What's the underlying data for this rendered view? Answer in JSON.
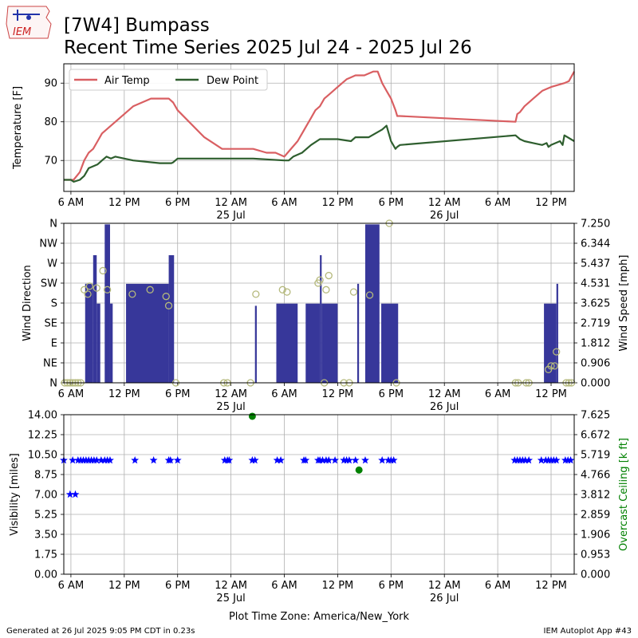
{
  "header": {
    "logo_text": "IEM",
    "title_line1": "[7W4] Bumpass",
    "title_line2": "Recent Time Series 2025 Jul 24 - 2025 Jul 26"
  },
  "footer": {
    "generated": "Generated at 26 Jul 2025 9:05 PM CDT in 0.23s",
    "app": "IEM Autoplot App #43",
    "timezone": "Plot Time Zone: America/New_York"
  },
  "colors": {
    "air_temp": "#d95f62",
    "dew_point": "#2e5e2e",
    "wind_bar": "#37379a",
    "wind_dir": "#b5b97c",
    "visibility": "#0000ff",
    "ceiling": "#008000"
  },
  "chart_data": [
    {
      "type": "line",
      "title": "",
      "ylabel": "Temperature [F]",
      "ylim": [
        62,
        95
      ],
      "yticks": [
        70,
        80,
        90
      ],
      "xlim_hours": [
        5.2,
        62.6
      ],
      "xticks": [
        {
          "h": 6,
          "label": "6 AM",
          "date": ""
        },
        {
          "h": 12,
          "label": "12 PM",
          "date": ""
        },
        {
          "h": 18,
          "label": "6 PM",
          "date": ""
        },
        {
          "h": 24,
          "label": "12 AM",
          "date": "25 Jul"
        },
        {
          "h": 30,
          "label": "6 AM",
          "date": ""
        },
        {
          "h": 36,
          "label": "12 PM",
          "date": ""
        },
        {
          "h": 42,
          "label": "6 PM",
          "date": ""
        },
        {
          "h": 48,
          "label": "12 AM",
          "date": "26 Jul"
        },
        {
          "h": 54,
          "label": "6 AM",
          "date": ""
        },
        {
          "h": 60,
          "label": "12 PM",
          "date": ""
        }
      ],
      "grid": true,
      "legend": "top-left",
      "series": [
        {
          "name": "Air Temp",
          "x": [
            5.2,
            6.0,
            6.3,
            7.0,
            7.5,
            8.0,
            8.5,
            9.0,
            9.5,
            10.0,
            11.0,
            13.0,
            15.0,
            17.0,
            17.5,
            18.0,
            21.0,
            23.0,
            25.0,
            26.5,
            28.0,
            29.0,
            30.0,
            31.5,
            32.5,
            33.0,
            33.5,
            34.0,
            34.5,
            35.0,
            36.0,
            37.0,
            37.5,
            38.0,
            39.0,
            39.5,
            40.0,
            40.5,
            41.0,
            41.5,
            42.0,
            42.5,
            42.7,
            43.0,
            56.0,
            56.2,
            56.5,
            57.0,
            58.0,
            59.0,
            59.5,
            60.0,
            61.5,
            62.0,
            62.6
          ],
          "values": [
            65,
            65,
            65,
            67,
            70,
            72,
            73,
            75,
            77,
            78,
            80,
            84,
            86,
            86,
            85,
            83,
            76,
            73,
            73,
            73,
            72,
            72,
            71,
            75,
            79,
            81,
            83,
            84,
            86,
            87,
            89,
            91,
            91.5,
            92,
            92,
            92.5,
            93,
            93,
            90,
            88,
            86,
            83,
            81.5,
            81.5,
            80,
            82,
            82.5,
            84,
            86,
            88,
            88.5,
            89,
            90,
            90.5,
            93
          ]
        },
        {
          "name": "Dew Point",
          "x": [
            5.2,
            6.0,
            6.3,
            7.0,
            7.5,
            8.0,
            9.0,
            9.5,
            10.0,
            10.5,
            11.0,
            13.0,
            16.0,
            17.0,
            17.3,
            17.5,
            18.0,
            24.0,
            26.5,
            30.0,
            30.5,
            31.0,
            32.0,
            33.0,
            34.0,
            35.0,
            36.0,
            37.5,
            38.0,
            39.5,
            41.0,
            41.5,
            42.0,
            42.5,
            42.7,
            43.0,
            56.0,
            56.5,
            57.0,
            58.0,
            59.0,
            59.5,
            59.7,
            60.0,
            61.0,
            61.3,
            61.5,
            62.6
          ],
          "values": [
            65,
            65,
            64.5,
            65,
            66,
            68,
            69,
            70,
            71,
            70.5,
            71,
            70,
            69.3,
            69.3,
            69.3,
            69.5,
            70.5,
            70.5,
            70.5,
            70,
            70,
            71,
            72,
            74,
            75.5,
            75.5,
            75.5,
            75,
            76,
            76,
            78,
            79,
            75,
            73,
            73.5,
            74,
            76.5,
            75.5,
            75,
            74.5,
            74,
            74.5,
            73.5,
            74,
            75,
            74,
            76.5,
            75
          ]
        }
      ]
    },
    {
      "type": "bar",
      "title": "",
      "ylabel": "Wind Direction",
      "ylabel_right": "Wind Speed [mph]",
      "dir_ticks": [
        "N",
        "NE",
        "E",
        "SE",
        "S",
        "SW",
        "W",
        "NW",
        "N"
      ],
      "speed_ticks": [
        "0.000",
        "0.906",
        "1.812",
        "2.719",
        "3.625",
        "4.531",
        "5.437",
        "6.344",
        "7.250"
      ],
      "speed_lim": [
        0,
        7.25
      ],
      "grid": true,
      "series": [
        {
          "name": "Wind Speed",
          "bars": [
            {
              "x0": 7.6,
              "x1": 8.5,
              "value": 4.5
            },
            {
              "x0": 8.5,
              "x1": 8.9,
              "value": 5.8
            },
            {
              "x0": 8.9,
              "x1": 9.3,
              "value": 3.6
            },
            {
              "x0": 9.8,
              "x1": 10.4,
              "value": 7.2
            },
            {
              "x0": 10.4,
              "x1": 10.7,
              "value": 3.6
            },
            {
              "x0": 12.2,
              "x1": 17.0,
              "value": 4.5
            },
            {
              "x0": 17.0,
              "x1": 17.6,
              "value": 5.8
            },
            {
              "x0": 26.7,
              "x1": 26.9,
              "value": 3.5
            },
            {
              "x0": 29.1,
              "x1": 31.5,
              "value": 3.6
            },
            {
              "x0": 32.4,
              "x1": 34.0,
              "value": 3.6
            },
            {
              "x0": 34.0,
              "x1": 34.2,
              "value": 5.8
            },
            {
              "x0": 34.2,
              "x1": 36.0,
              "value": 3.6
            },
            {
              "x0": 38.2,
              "x1": 38.4,
              "value": 4.5
            },
            {
              "x0": 39.1,
              "x1": 40.7,
              "value": 7.2
            },
            {
              "x0": 40.9,
              "x1": 42.8,
              "value": 3.6
            },
            {
              "x0": 59.2,
              "x1": 60.6,
              "value": 3.6
            },
            {
              "x0": 60.6,
              "x1": 60.8,
              "value": 4.5
            }
          ]
        },
        {
          "name": "Wind Direction",
          "points": [
            {
              "x": 5.3,
              "deg": 0
            },
            {
              "x": 5.6,
              "deg": 0
            },
            {
              "x": 5.9,
              "deg": 0
            },
            {
              "x": 6.2,
              "deg": 0
            },
            {
              "x": 6.5,
              "deg": 0
            },
            {
              "x": 6.8,
              "deg": 0
            },
            {
              "x": 7.1,
              "deg": 0
            },
            {
              "x": 7.5,
              "deg": 210
            },
            {
              "x": 7.9,
              "deg": 200
            },
            {
              "x": 8.1,
              "deg": 218
            },
            {
              "x": 8.9,
              "deg": 214
            },
            {
              "x": 9.6,
              "deg": 253
            },
            {
              "x": 10.1,
              "deg": 210
            },
            {
              "x": 12.9,
              "deg": 200
            },
            {
              "x": 14.9,
              "deg": 210
            },
            {
              "x": 16.7,
              "deg": 195
            },
            {
              "x": 17.0,
              "deg": 174
            },
            {
              "x": 17.8,
              "deg": 0
            },
            {
              "x": 23.2,
              "deg": 0
            },
            {
              "x": 23.6,
              "deg": 0
            },
            {
              "x": 26.2,
              "deg": 0
            },
            {
              "x": 26.8,
              "deg": 200
            },
            {
              "x": 29.8,
              "deg": 210
            },
            {
              "x": 30.3,
              "deg": 205
            },
            {
              "x": 33.8,
              "deg": 225
            },
            {
              "x": 34.0,
              "deg": 232
            },
            {
              "x": 34.7,
              "deg": 210
            },
            {
              "x": 35.0,
              "deg": 242
            },
            {
              "x": 34.5,
              "deg": 0
            },
            {
              "x": 36.7,
              "deg": 0
            },
            {
              "x": 37.3,
              "deg": 0
            },
            {
              "x": 37.8,
              "deg": 205
            },
            {
              "x": 39.6,
              "deg": 198
            },
            {
              "x": 41.8,
              "deg": 360
            },
            {
              "x": 42.6,
              "deg": 0
            },
            {
              "x": 56.0,
              "deg": 0
            },
            {
              "x": 56.3,
              "deg": 0
            },
            {
              "x": 57.2,
              "deg": 0
            },
            {
              "x": 57.5,
              "deg": 0
            },
            {
              "x": 59.7,
              "deg": 30
            },
            {
              "x": 60.0,
              "deg": 38
            },
            {
              "x": 60.4,
              "deg": 38
            },
            {
              "x": 60.6,
              "deg": 70
            },
            {
              "x": 61.7,
              "deg": 0
            },
            {
              "x": 62.0,
              "deg": 0
            },
            {
              "x": 62.3,
              "deg": 0
            }
          ]
        }
      ]
    },
    {
      "type": "scatter",
      "title": "",
      "ylabel": "Visibility [miles]",
      "ylabel_right": "Overcast Ceiling [k ft]",
      "vis_ticks": [
        "0.00",
        "1.75",
        "3.50",
        "5.25",
        "7.00",
        "8.75",
        "10.50",
        "12.25",
        "14.00"
      ],
      "ceil_ticks": [
        "0.000",
        "0.953",
        "1.906",
        "2.859",
        "3.812",
        "4.766",
        "5.719",
        "6.672",
        "7.625"
      ],
      "vis_lim": [
        0,
        14
      ],
      "ceil_lim": [
        0,
        7.625
      ],
      "grid": true,
      "series": [
        {
          "name": "Visibility",
          "x": [
            5.2,
            5.9,
            6.2,
            6.5,
            6.8,
            7.1,
            7.4,
            7.7,
            8.0,
            8.3,
            8.6,
            8.9,
            9.4,
            9.8,
            10.1,
            10.4,
            13.2,
            15.3,
            17.0,
            17.2,
            18.0,
            23.3,
            23.6,
            23.8,
            26.4,
            26.7,
            29.2,
            29.6,
            32.2,
            32.4,
            33.8,
            34.0,
            34.3,
            34.7,
            35.0,
            35.7,
            36.7,
            37.0,
            37.3,
            38.0,
            39.1,
            41.0,
            41.7,
            42.0,
            42.3,
            55.9,
            56.2,
            56.5,
            56.8,
            57.1,
            57.5,
            58.9,
            59.4,
            59.7,
            60.0,
            60.3,
            60.6,
            61.6,
            61.9,
            62.2
          ],
          "values": [
            10,
            7,
            10,
            7,
            10,
            10,
            10,
            10,
            10,
            10,
            10,
            10,
            10,
            10,
            10,
            10,
            10,
            10,
            10,
            10,
            10,
            10,
            10,
            10,
            10,
            10,
            10,
            10,
            10,
            10,
            10,
            10,
            10,
            10,
            10,
            10,
            10,
            10,
            10,
            10,
            10,
            10,
            10,
            10,
            10,
            10,
            10,
            10,
            10,
            10,
            10,
            10,
            10,
            10,
            10,
            10,
            10,
            10,
            10,
            10
          ]
        },
        {
          "name": "Overcast Ceiling",
          "x": [
            26.4,
            38.4
          ],
          "values": [
            7.55,
            4.98
          ]
        }
      ]
    }
  ]
}
